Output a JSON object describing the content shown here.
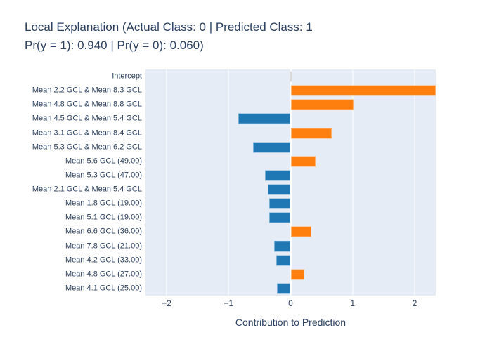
{
  "title": {
    "line1": "Local Explanation (Actual Class: 0 | Predicted Class: 1",
    "line2": "Pr(y = 1): 0.940 | Pr(y = 0): 0.060)"
  },
  "chart_data": {
    "type": "bar",
    "orientation": "horizontal",
    "title": "Local Explanation (Actual Class: 0 | Predicted Class: 1 Pr(y = 1): 0.940 | Pr(y = 0): 0.060)",
    "xlabel": "Contribution to Prediction",
    "ylabel": "",
    "categories": [
      "Intercept",
      "Mean 2.2 GCL & Mean 8.3 GCL",
      "Mean 4.8 GCL & Mean 8.8 GCL",
      "Mean 4.5 GCL & Mean 5.4 GCL",
      "Mean 3.1 GCL & Mean 8.4 GCL",
      "Mean 5.3 GCL & Mean 6.2 GCL",
      "Mean 5.6 GCL (49.00)",
      "Mean 5.3 GCL (47.00)",
      "Mean 2.1 GCL & Mean 5.4 GCL",
      "Mean 1.8 GCL (19.00)",
      "Mean 5.1 GCL (19.00)",
      "Mean 6.6 GCL (36.00)",
      "Mean 7.8 GCL (21.00)",
      "Mean 4.2 GCL (33.00)",
      "Mean 4.8 GCL (27.00)",
      "Mean 4.1 GCL (25.00)"
    ],
    "values": [
      0.0,
      2.34,
      1.01,
      -0.84,
      0.66,
      -0.61,
      0.4,
      -0.41,
      -0.37,
      -0.35,
      -0.35,
      0.33,
      -0.27,
      -0.23,
      0.22,
      -0.22
    ],
    "xlim": [
      -2.34,
      2.34
    ],
    "xticks": [
      -2,
      -1,
      0,
      1,
      2
    ],
    "xtick_labels": [
      "−2",
      "−1",
      "0",
      "1",
      "2"
    ],
    "grid": true,
    "legend_position": "none",
    "colors": {
      "positive": "#ff7f0e",
      "negative": "#1f77b4",
      "intercept": "#d9d9d9",
      "plot_background": "#e5ecf6",
      "gridline": "#ffffff",
      "text": "#2a3f5f"
    }
  }
}
